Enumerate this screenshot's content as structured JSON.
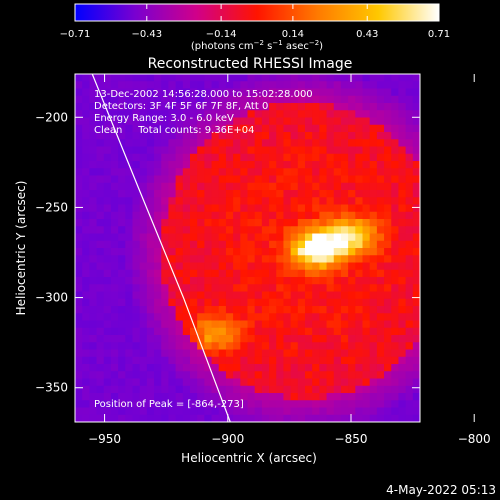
{
  "chart_data": {
    "type": "heatmap",
    "title": "Reconstructed RHESSI Image",
    "xlabel": "Heliocentric X (arcsec)",
    "ylabel": "Heliocentric Y (arcsec)",
    "xlim": [
      -962,
      -822
    ],
    "ylim": [
      -369,
      -176
    ],
    "x_ticks": [
      -950,
      -900,
      -850,
      -800
    ],
    "y_ticks": [
      -200,
      -250,
      -300,
      -350
    ],
    "x_tick_labels": [
      "−950",
      "−900",
      "−850",
      "−800"
    ],
    "y_tick_labels": [
      "−200",
      "−250",
      "−300",
      "−350"
    ],
    "colorbar": {
      "range": [
        -0.71,
        0.71
      ],
      "tick_values": [
        -0.71,
        -0.43,
        -0.14,
        0.14,
        0.43,
        0.71
      ],
      "tick_labels": [
        "−0.71",
        "−0.43",
        "−0.14",
        "0.14",
        "0.43",
        "0.71"
      ],
      "units_main": "(photons cm",
      "units_exp1": "−2",
      "units_mid1": " s",
      "units_exp2": "−1",
      "units_mid2": " asec",
      "units_exp3": "−2",
      "units_end": ")",
      "gradient_colors": [
        "#0000ff",
        "#7a00d0",
        "#d0008a",
        "#ff1400",
        "#ff7a00",
        "#ffc800",
        "#ffffff"
      ]
    },
    "info_lines": [
      "13-Dec-2002 14:56:28.000 to 15:02:28.000",
      "Detectors: 3F 4F 5F 6F 7F 8F, Att 0",
      "Energy Range: 3.0 - 6.0 keV",
      "Clean     Total counts: 9.36E+04"
    ],
    "peak_label": "Position of Peak = [-864,-273]",
    "peak": [
      -864,
      -273
    ],
    "sources": [
      {
        "x": -864,
        "y": -273,
        "amplitude": 0.71
      },
      {
        "x": -850,
        "y": -266,
        "amplitude": 0.5
      },
      {
        "x": -905,
        "y": -320,
        "amplitude": 0.36
      }
    ],
    "limb_curve": [
      [
        -955,
        -176
      ],
      [
        -936,
        -240
      ],
      [
        -918,
        -300
      ],
      [
        -899,
        -369
      ]
    ],
    "timestamp": "4-May-2022 05:13"
  }
}
